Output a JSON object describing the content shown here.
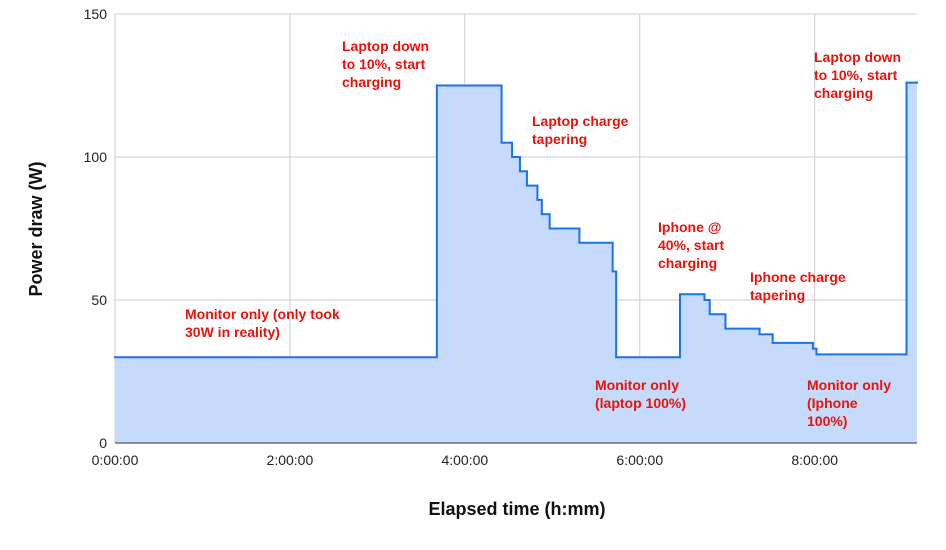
{
  "chart_data": {
    "type": "step-area",
    "x_label": "Elapsed time (h:mm)",
    "y_label": "Power draw (W)",
    "x": [
      0,
      3.68,
      4.42,
      4.54,
      4.63,
      4.71,
      4.83,
      4.88,
      4.97,
      5.31,
      5.69,
      5.73,
      6.46,
      6.74,
      6.8,
      6.98,
      7.37,
      7.52,
      7.98,
      8.02,
      9.05,
      9.17
    ],
    "series": [
      {
        "color": "#1a73e8",
        "fill": "#c6dafc",
        "values": [
          30,
          125,
          105,
          100,
          95,
          90,
          85,
          80,
          75,
          70,
          60,
          30,
          52,
          50,
          45,
          40,
          38,
          35,
          33,
          31,
          126,
          126
        ]
      }
    ],
    "xlim": [
      0,
      9.17
    ],
    "ylim": [
      0,
      150
    ],
    "xticks": [
      {
        "value": 0,
        "label": "0:00:00"
      },
      {
        "value": 2,
        "label": "2:00:00"
      },
      {
        "value": 4,
        "label": "4:00:00"
      },
      {
        "value": 6,
        "label": "6:00:00"
      },
      {
        "value": 8,
        "label": "8:00:00"
      }
    ],
    "yticks": [
      0,
      50,
      100,
      150
    ],
    "grid": true,
    "annotations": [
      [
        "Laptop down",
        "to 10%, start",
        "charging"
      ],
      [
        "Laptop charge",
        "tapering"
      ],
      [
        "Iphone @",
        "40%, start",
        "charging"
      ],
      [
        "Iphone charge",
        "tapering"
      ],
      [
        "Monitor only (only took",
        "30W in reality)"
      ],
      [
        "Monitor only",
        "(laptop 100%)"
      ],
      [
        "Monitor only",
        "(Iphone",
        "100%)"
      ],
      [
        "Laptop down",
        "to 10%, start",
        "charging"
      ]
    ]
  }
}
